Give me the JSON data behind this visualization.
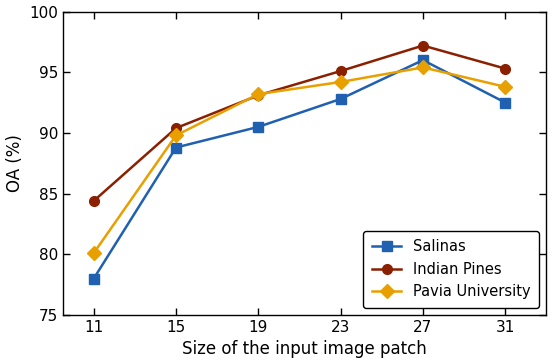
{
  "x": [
    11,
    15,
    19,
    23,
    27,
    31
  ],
  "salinas": [
    78.0,
    88.8,
    90.5,
    92.8,
    96.0,
    92.5
  ],
  "indian_pines": [
    84.4,
    90.4,
    93.1,
    95.1,
    97.2,
    95.3
  ],
  "pavia_university": [
    80.1,
    89.8,
    93.2,
    94.2,
    95.4,
    93.8
  ],
  "salinas_color": "#2060B0",
  "indian_pines_color": "#8B2000",
  "pavia_university_color": "#E8A000",
  "xlabel": "Size of the input image patch",
  "ylabel": "OA (%)",
  "ylim": [
    75,
    100
  ],
  "xlim": [
    9.5,
    33
  ],
  "yticks": [
    75,
    80,
    85,
    90,
    95,
    100
  ],
  "xticks": [
    11,
    15,
    19,
    23,
    27,
    31
  ],
  "legend_labels": [
    "Salinas",
    "Indian Pines",
    "Pavia University"
  ],
  "linewidth": 1.8,
  "markersize": 7,
  "xlabel_fontsize": 12,
  "ylabel_fontsize": 12,
  "tick_labelsize": 11
}
